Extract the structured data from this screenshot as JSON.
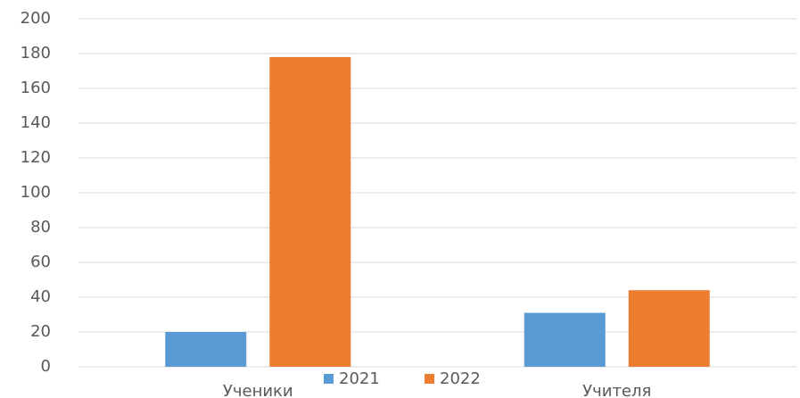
{
  "chart_data": {
    "type": "bar",
    "categories": [
      "Ученики",
      "Учителя"
    ],
    "series": [
      {
        "name": "2021",
        "color": "#5b9bd5",
        "values": [
          20,
          31
        ]
      },
      {
        "name": "2022",
        "color": "#ed7d31",
        "values": [
          178,
          44
        ]
      }
    ],
    "ylim": [
      0,
      200
    ],
    "yticks": [
      0,
      20,
      40,
      60,
      80,
      100,
      120,
      140,
      160,
      180,
      200
    ],
    "grid": true,
    "legend": "bottom"
  }
}
